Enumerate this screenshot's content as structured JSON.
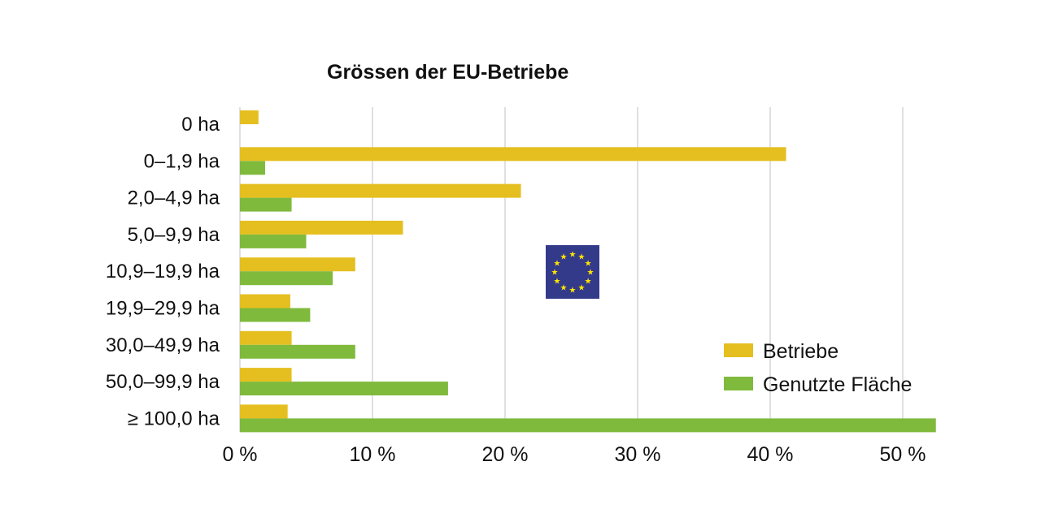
{
  "chart_data": {
    "type": "bar",
    "orientation": "horizontal",
    "title": "Grössen der EU-Betriebe",
    "categories": [
      "0 ha",
      "0–1,9 ha",
      "2,0–4,9 ha",
      "5,0–9,9 ha",
      "10,9–19,9 ha",
      "19,9–29,9 ha",
      "30,0–49,9 ha",
      "50,0–99,9 ha",
      "≥ 100,0 ha"
    ],
    "series": [
      {
        "name": "Betriebe",
        "color": "#e5bf1f",
        "values": [
          1.4,
          41.2,
          21.2,
          12.3,
          8.7,
          3.8,
          3.9,
          3.9,
          3.6
        ]
      },
      {
        "name": "Genutzte Fläche",
        "color": "#7fba3c",
        "values": [
          null,
          1.9,
          3.9,
          5.0,
          7.0,
          5.3,
          8.7,
          15.7,
          52.5
        ]
      }
    ],
    "xlim": [
      0,
      52.5
    ],
    "xticks": [
      0,
      10,
      20,
      30,
      40,
      50
    ],
    "xtick_labels": [
      "0 %",
      "10 %",
      "20 %",
      "30 %",
      "40 %",
      "50 %"
    ],
    "grid": "vertical",
    "legend": "bottom-right",
    "decoration": "eu-flag-icon"
  }
}
